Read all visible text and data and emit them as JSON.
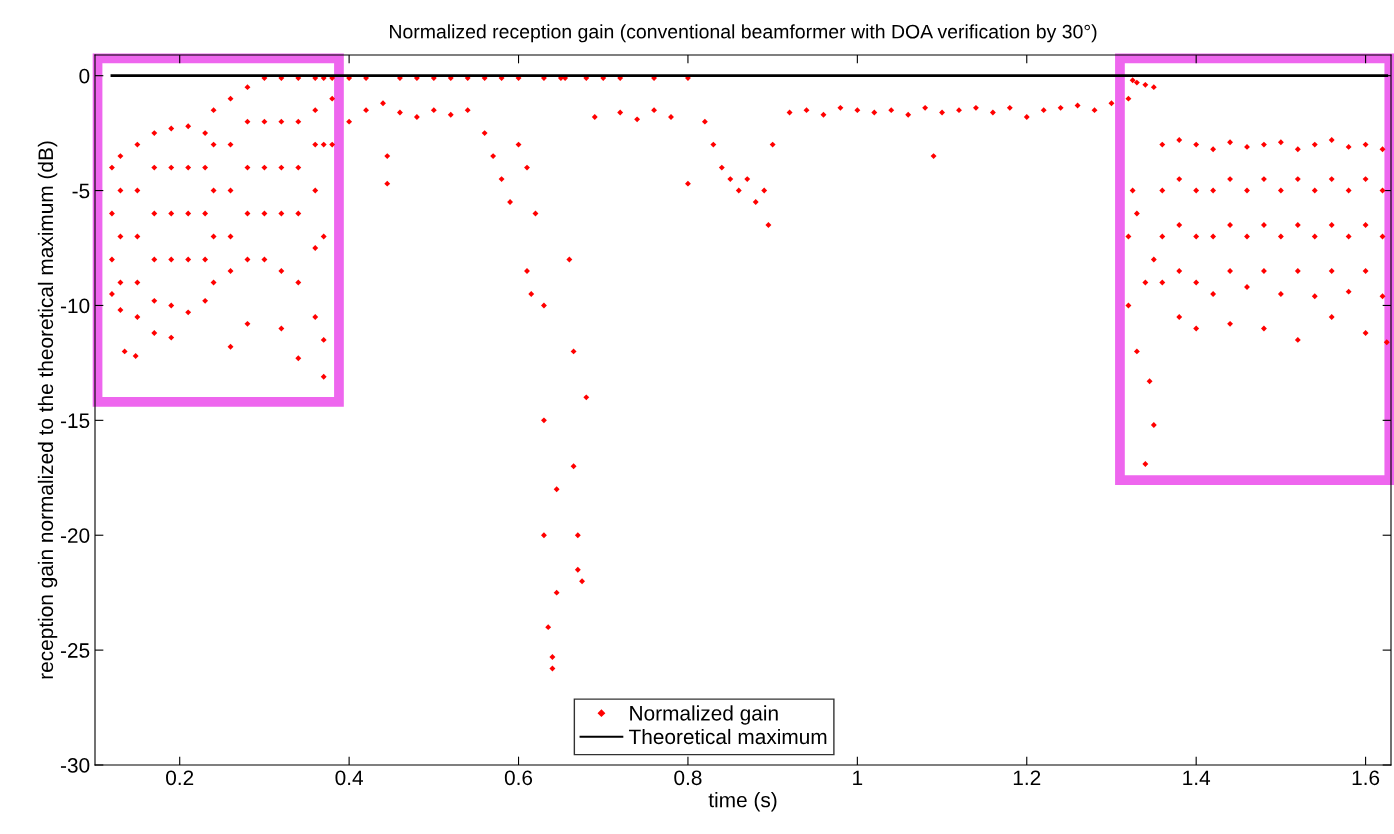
{
  "chart_data": {
    "type": "scatter",
    "title": "Normalized reception gain (conventional beamformer with DOA verification by 30°)",
    "xlabel": "time (s)",
    "ylabel": "reception gain normalized to the theoretical maximum (dB)",
    "xlim": [
      0.1,
      1.63
    ],
    "ylim": [
      -30,
      0.9
    ],
    "xticks": [
      0.2,
      0.4,
      0.6,
      0.8,
      1,
      1.2,
      1.4,
      1.6
    ],
    "yticks": [
      -30,
      -25,
      -20,
      -15,
      -10,
      -5,
      0
    ],
    "grid": false,
    "legend": "bottom",
    "marker": "diamond",
    "series": [
      {
        "name": "Normalized gain",
        "color": "#ff0000",
        "x": [
          0.12,
          0.12,
          0.12,
          0.12,
          0.13,
          0.13,
          0.13,
          0.13,
          0.13,
          0.135,
          0.15,
          0.15,
          0.15,
          0.15,
          0.15,
          0.148,
          0.17,
          0.17,
          0.17,
          0.17,
          0.17,
          0.17,
          0.19,
          0.19,
          0.19,
          0.19,
          0.19,
          0.19,
          0.21,
          0.21,
          0.21,
          0.21,
          0.21,
          0.23,
          0.23,
          0.23,
          0.23,
          0.23,
          0.24,
          0.24,
          0.24,
          0.24,
          0.24,
          0.26,
          0.26,
          0.26,
          0.26,
          0.26,
          0.26,
          0.28,
          0.28,
          0.28,
          0.28,
          0.28,
          0.28,
          0.3,
          0.3,
          0.3,
          0.3,
          0.3,
          0.32,
          0.32,
          0.32,
          0.32,
          0.32,
          0.32,
          0.34,
          0.34,
          0.34,
          0.34,
          0.34,
          0.34,
          0.36,
          0.36,
          0.36,
          0.36,
          0.36,
          0.36,
          0.37,
          0.37,
          0.37,
          0.37,
          0.37,
          0.38,
          0.38,
          0.38,
          0.4,
          0.4,
          0.42,
          0.42,
          0.44,
          0.445,
          0.445,
          0.46,
          0.46,
          0.48,
          0.48,
          0.5,
          0.5,
          0.52,
          0.52,
          0.54,
          0.54,
          0.56,
          0.56,
          0.57,
          0.58,
          0.58,
          0.59,
          0.6,
          0.6,
          0.61,
          0.61,
          0.615,
          0.62,
          0.63,
          0.63,
          0.63,
          0.63,
          0.635,
          0.64,
          0.64,
          0.645,
          0.645,
          0.65,
          0.655,
          0.66,
          0.665,
          0.665,
          0.67,
          0.67,
          0.675,
          0.68,
          0.68,
          0.69,
          0.7,
          0.72,
          0.72,
          0.74,
          0.76,
          0.76,
          0.78,
          0.8,
          0.8,
          0.82,
          0.83,
          0.84,
          0.85,
          0.86,
          0.87,
          0.88,
          0.89,
          0.895,
          0.9,
          0.92,
          0.94,
          0.96,
          0.98,
          1.0,
          1.02,
          1.04,
          1.06,
          1.08,
          1.09,
          1.1,
          1.12,
          1.14,
          1.16,
          1.18,
          1.2,
          1.22,
          1.24,
          1.26,
          1.28,
          1.3,
          1.325,
          1.325,
          1.32,
          1.32,
          1.32,
          1.33,
          1.33,
          1.33,
          1.34,
          1.34,
          1.34,
          1.345,
          1.35,
          1.35,
          1.35,
          1.36,
          1.36,
          1.36,
          1.36,
          1.38,
          1.38,
          1.38,
          1.38,
          1.38,
          1.4,
          1.4,
          1.4,
          1.4,
          1.4,
          1.42,
          1.42,
          1.42,
          1.42,
          1.44,
          1.44,
          1.44,
          1.44,
          1.44,
          1.46,
          1.46,
          1.46,
          1.46,
          1.48,
          1.48,
          1.48,
          1.48,
          1.48,
          1.5,
          1.5,
          1.5,
          1.5,
          1.52,
          1.52,
          1.52,
          1.52,
          1.52,
          1.54,
          1.54,
          1.54,
          1.54,
          1.56,
          1.56,
          1.56,
          1.56,
          1.56,
          1.58,
          1.58,
          1.58,
          1.58,
          1.6,
          1.6,
          1.6,
          1.6,
          1.6,
          1.62,
          1.62,
          1.62,
          1.62,
          1.625
        ],
        "values": [
          -4,
          -6,
          -8,
          -9.5,
          -3.5,
          -5,
          -7,
          -9,
          -10.2,
          -12,
          -3,
          -5,
          -7,
          -9,
          -10.5,
          -12.2,
          -2.5,
          -4,
          -6,
          -8,
          -9.8,
          -11.2,
          -2.3,
          -4,
          -6,
          -8,
          -10,
          -11.4,
          -2.2,
          -4,
          -6,
          -8,
          -10.3,
          -2.5,
          -4,
          -6,
          -8,
          -9.8,
          -1.5,
          -3,
          -5,
          -7,
          -9,
          -1,
          -3,
          -5,
          -7,
          -8.5,
          -11.8,
          -0.5,
          -2,
          -4,
          -6,
          -8,
          -10.8,
          -0.1,
          -2,
          -4,
          -6,
          -8,
          -0.1,
          -2,
          -4,
          -6,
          -8.5,
          -11,
          -0.1,
          -2,
          -4,
          -6,
          -9,
          -12.3,
          -0.1,
          -1.5,
          -3,
          -5,
          -7.5,
          -10.5,
          -0.1,
          -3,
          -7,
          -11.5,
          -13.1,
          -0.1,
          -1,
          -3,
          -0.1,
          -2,
          -0.1,
          -1.5,
          -1.2,
          -3.5,
          -4.7,
          -0.1,
          -1.6,
          -0.1,
          -1.8,
          -0.1,
          -1.5,
          -0.1,
          -1.7,
          -0.1,
          -1.5,
          -0.1,
          -2.5,
          -3.5,
          -0.1,
          -4.5,
          -5.5,
          -0.1,
          -3,
          -4,
          -8.5,
          -9.5,
          -6,
          -0.1,
          -10,
          -15,
          -20,
          -24,
          -25.8,
          -25.3,
          -18,
          -22.5,
          -0.1,
          -0.1,
          -8,
          -12,
          -17,
          -20,
          -21.5,
          -22,
          -0.1,
          -14,
          -1.8,
          -0.1,
          -1.6,
          -0.1,
          -1.9,
          -0.1,
          -1.5,
          -1.8,
          -0.1,
          -4.7,
          -2,
          -3,
          -4,
          -4.5,
          -5,
          -4.5,
          -5.5,
          -5,
          -6.5,
          -3,
          -1.6,
          -1.5,
          -1.7,
          -1.4,
          -1.5,
          -1.6,
          -1.5,
          -1.7,
          -1.4,
          -3.5,
          -1.6,
          -1.5,
          -1.4,
          -1.6,
          -1.4,
          -1.8,
          -1.5,
          -1.4,
          -1.3,
          -1.5,
          -1.2,
          -0.2,
          -5,
          -1,
          -7,
          -10,
          -0.3,
          -6,
          -12,
          -0.4,
          -9,
          -16.9,
          -13.3,
          -0.5,
          -8,
          -15.2,
          -3,
          -5,
          -7,
          -9,
          -2.8,
          -4.5,
          -6.5,
          -8.5,
          -10.5,
          -3,
          -5,
          -7,
          -9,
          -11,
          -3.2,
          -5,
          -7,
          -9.5,
          -2.9,
          -4.5,
          -6.5,
          -8.5,
          -10.8,
          -3.1,
          -5,
          -7,
          -9.2,
          -3,
          -4.5,
          -6.5,
          -8.5,
          -11,
          -2.9,
          -5,
          -7,
          -9.5,
          -3.2,
          -4.5,
          -6.5,
          -8.5,
          -11.5,
          -3,
          -5,
          -7,
          -9.6,
          -2.8,
          -4.5,
          -6.5,
          -8.5,
          -10.5,
          -3.1,
          -5,
          -7,
          -9.4,
          -3,
          -4.5,
          -6.5,
          -8.5,
          -11.2,
          -3.2,
          -5,
          -7,
          -9.6,
          -11.6
        ]
      },
      {
        "name": "Theoretical maximum",
        "color": "#000000",
        "type": "line",
        "marker": "none",
        "x": [
          0.12,
          1.625
        ],
        "values": [
          0,
          0
        ]
      }
    ]
  }
}
